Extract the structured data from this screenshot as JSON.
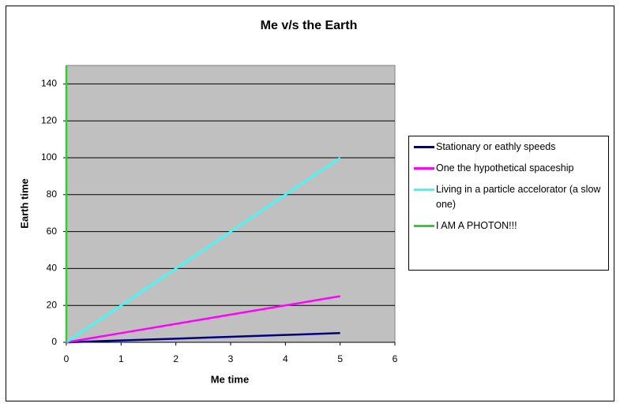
{
  "chart_data": {
    "type": "line",
    "title": "Me v/s the Earth",
    "x_label": "Me time",
    "y_label": "Earth time",
    "xlim": [
      0,
      6
    ],
    "xticks": [
      0,
      1,
      2,
      3,
      4,
      5,
      6
    ],
    "ylim": [
      0,
      150
    ],
    "yticks": [
      0,
      20,
      40,
      60,
      80,
      100,
      120,
      140
    ],
    "grid": true,
    "legend": "right",
    "series": [
      {
        "name": "Stationary or eathly speeds",
        "color": "#000080",
        "x": [
          0,
          1,
          2,
          3,
          4,
          5
        ],
        "values": [
          0,
          1,
          2,
          3,
          4,
          5
        ]
      },
      {
        "name": "One the hypothetical spaceship",
        "color": "#ff00ff",
        "x": [
          0,
          1,
          2,
          3,
          4,
          5
        ],
        "values": [
          0,
          5,
          10,
          15,
          20,
          25
        ]
      },
      {
        "name": "Living in a particle accelorator (a slow one)",
        "color": "#33ffff",
        "x": [
          0,
          1,
          2,
          3,
          4,
          5
        ],
        "values": [
          0,
          20,
          40,
          60,
          80,
          100
        ]
      },
      {
        "name": "I AM A PHOTON!!!",
        "color": "#33cc33",
        "x": [
          0,
          0
        ],
        "values": [
          0,
          150
        ]
      }
    ]
  }
}
